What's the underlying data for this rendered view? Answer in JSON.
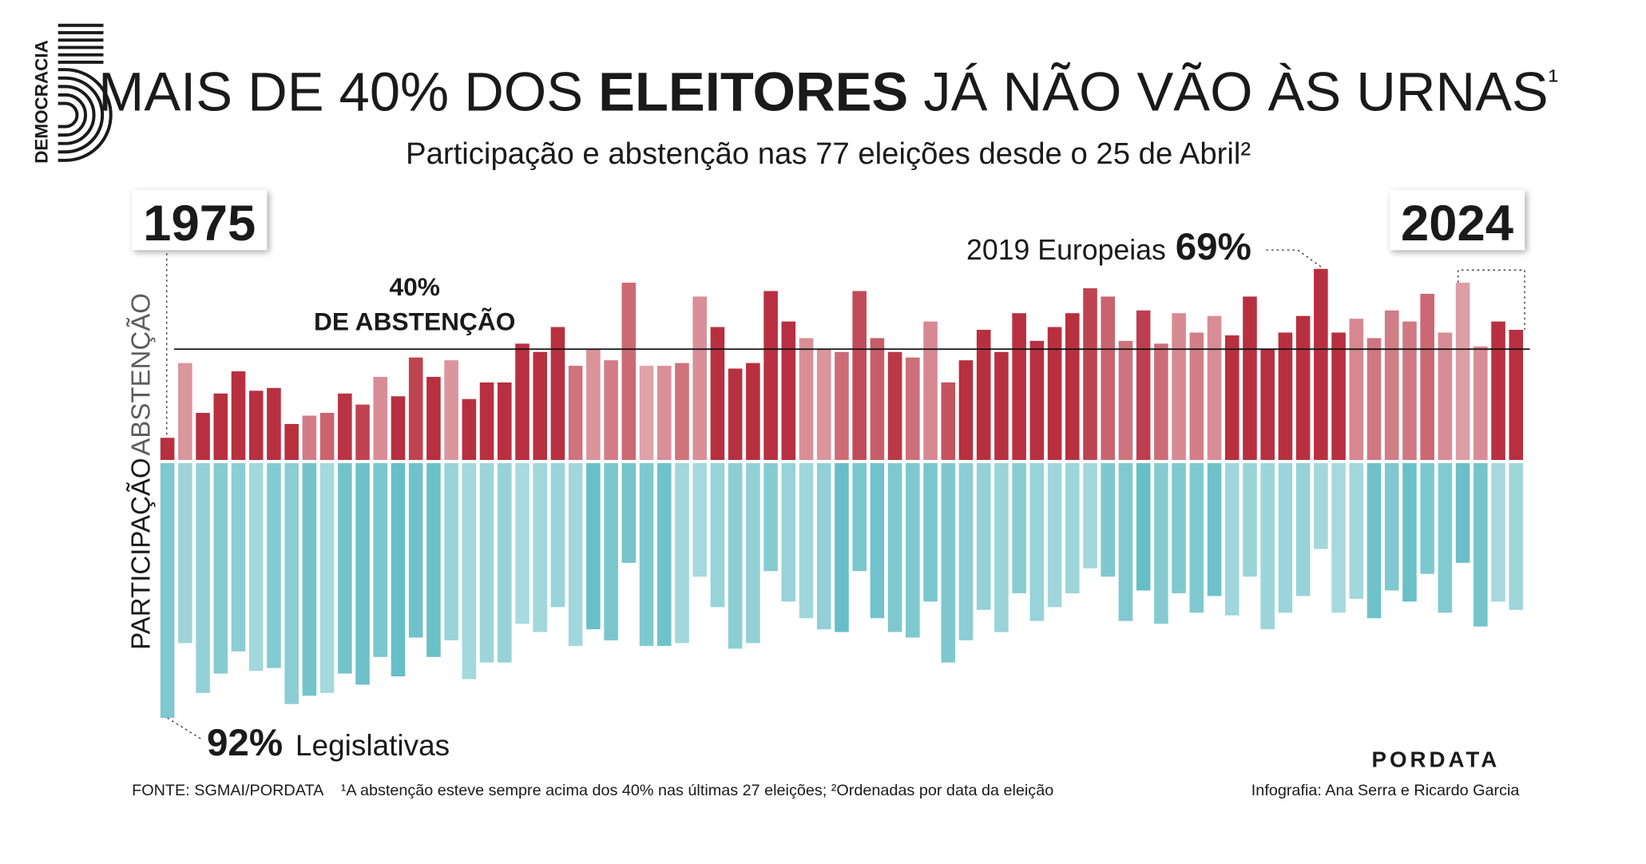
{
  "chart_data": {
    "type": "diverging-bar",
    "title_parts": [
      "MAIS DE 40% DOS ",
      "ELEITORES",
      " JÁ NÃO VÃO ÀS URNAS",
      "¹"
    ],
    "subtitle": "Participação e abstenção nas 77 eleições desde o 25 de Abril²",
    "categories": [
      "1975",
      null,
      null,
      null,
      null,
      null,
      null,
      null,
      null,
      null,
      null,
      null,
      null,
      null,
      null,
      null,
      null,
      null,
      null,
      null,
      null,
      null,
      null,
      null,
      null,
      null,
      null,
      null,
      null,
      null,
      null,
      null,
      null,
      null,
      null,
      null,
      null,
      null,
      null,
      null,
      null,
      null,
      null,
      null,
      null,
      null,
      null,
      null,
      null,
      null,
      null,
      null,
      null,
      null,
      null,
      null,
      null,
      null,
      null,
      null,
      null,
      null,
      null,
      null,
      null,
      null,
      null,
      null,
      null,
      null,
      null,
      null,
      null,
      null,
      null,
      null,
      "2024"
    ],
    "series": [
      {
        "name": "ABSTENÇÃO",
        "color": "#b8303f",
        "direction": "up",
        "values": [
          8,
          35,
          17,
          24,
          32,
          25,
          26,
          13,
          16,
          17,
          24,
          20,
          30,
          23,
          37,
          30,
          36,
          22,
          28,
          28,
          42,
          39,
          48,
          34,
          40,
          36,
          64,
          34,
          34,
          35,
          59,
          48,
          33,
          35,
          61,
          50,
          44,
          40,
          39,
          61,
          44,
          39,
          37,
          50,
          28,
          36,
          47,
          39,
          53,
          43,
          48,
          53,
          62,
          59,
          43,
          54,
          42,
          53,
          46,
          52,
          45,
          59,
          40,
          46,
          52,
          69,
          46,
          51,
          44,
          54,
          50,
          60,
          46,
          64,
          41,
          50,
          47
        ]
      },
      {
        "name": "PARTICIPAÇÃO",
        "color": "#5bb9c2",
        "direction": "down",
        "values": [
          92,
          65,
          83,
          76,
          68,
          75,
          74,
          87,
          84,
          83,
          76,
          80,
          70,
          77,
          63,
          70,
          64,
          78,
          72,
          72,
          58,
          61,
          52,
          66,
          60,
          64,
          36,
          66,
          66,
          65,
          41,
          52,
          67,
          65,
          39,
          50,
          56,
          60,
          61,
          39,
          56,
          61,
          63,
          50,
          72,
          64,
          53,
          61,
          47,
          57,
          52,
          47,
          38,
          41,
          57,
          46,
          58,
          47,
          54,
          48,
          55,
          41,
          60,
          54,
          48,
          31,
          54,
          49,
          56,
          46,
          50,
          40,
          54,
          36,
          59,
          50,
          53
        ]
      }
    ],
    "ylim": [
      0,
      100
    ],
    "reference_line": {
      "value": 40,
      "label": [
        "40%",
        "DE ABSTENÇÃO"
      ]
    },
    "annotations": [
      {
        "text": "2019 Europeias",
        "value": 69,
        "value_label": "69%"
      },
      {
        "text": "Legislativas",
        "value": 92,
        "value_label": "92%"
      }
    ],
    "logo": "DEMOCRACIA",
    "brand": "PORDATA",
    "source": "FONTE: SGMAI/PORDATA",
    "notes": "¹A abstenção esteve sempre acima dos 40% nas últimas 27 eleições; ²Ordenadas por data da eleição",
    "credits": "Infografia: Ana Serra e Ricardo Garcia"
  }
}
